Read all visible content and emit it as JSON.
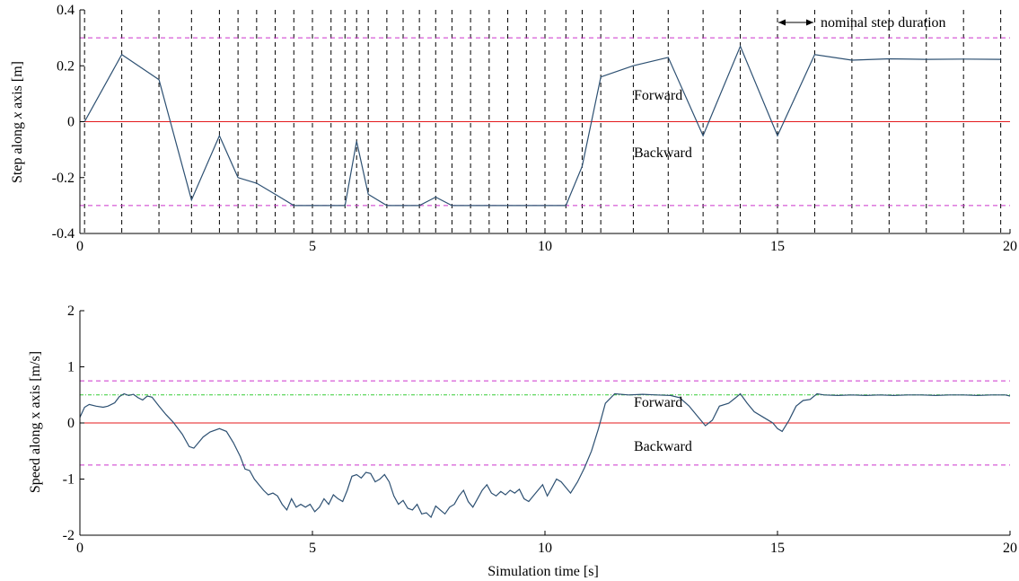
{
  "colors": {
    "series": "#2d5072",
    "zero_line": "#e41a1c",
    "limit_line": "#cc33cc",
    "target_line": "#33cc33",
    "step_marker": "#000000",
    "background": "#ffffff"
  },
  "chart_data": [
    {
      "type": "line",
      "ylabel_prefix": "Step along ",
      "ylabel_var": "x",
      "ylabel_suffix": " axis [m]",
      "xlabel": "",
      "xlim": [
        0,
        20
      ],
      "ylim": [
        -0.4,
        0.4
      ],
      "xticks": [
        0,
        5,
        10,
        15,
        20
      ],
      "yticks": [
        0.4,
        0.2,
        0,
        -0.2,
        -0.4
      ],
      "ytick_labels": [
        "0.4",
        "0.2",
        "0",
        "-0.2",
        "-0.4"
      ],
      "annotations": {
        "forward": "Forward",
        "backward": "Backward",
        "nominal": "nominal step duration"
      },
      "reference_lines": {
        "zero": 0,
        "upper_limit": 0.3,
        "lower_limit": -0.3
      },
      "step_times": [
        0.1,
        0.9,
        1.7,
        2.4,
        3.0,
        3.4,
        3.8,
        4.2,
        4.6,
        5.0,
        5.4,
        5.7,
        5.95,
        6.2,
        6.6,
        6.95,
        7.3,
        7.65,
        8.0,
        8.4,
        8.8,
        9.2,
        9.6,
        10.0,
        10.45,
        10.8,
        11.2,
        11.9,
        12.65,
        13.4,
        14.2,
        15.0,
        15.8,
        16.6,
        17.4,
        18.2,
        19.0,
        19.8
      ],
      "series": [
        {
          "x": [
            0.1,
            0.9,
            1.7,
            2.4,
            3.0,
            3.4,
            3.8,
            4.2,
            4.6,
            5.0,
            5.4,
            5.7,
            5.95,
            6.2,
            6.6,
            6.95,
            7.3,
            7.65,
            8.0,
            8.4,
            8.8,
            9.2,
            9.6,
            10.0,
            10.45,
            10.8,
            11.2,
            11.9,
            12.65,
            13.4,
            14.2,
            15.0,
            15.8,
            16.6,
            17.4,
            18.2,
            19.0,
            19.8
          ],
          "y": [
            0.0,
            0.24,
            0.15,
            -0.28,
            -0.05,
            -0.2,
            -0.22,
            -0.26,
            -0.3,
            -0.3,
            -0.3,
            -0.3,
            -0.07,
            -0.26,
            -0.3,
            -0.3,
            -0.3,
            -0.27,
            -0.3,
            -0.3,
            -0.3,
            -0.3,
            -0.3,
            -0.3,
            -0.3,
            -0.16,
            0.16,
            0.2,
            0.23,
            -0.05,
            0.27,
            -0.05,
            0.24,
            0.22,
            0.225,
            0.223,
            0.224,
            0.223
          ]
        }
      ]
    },
    {
      "type": "line",
      "ylabel": "Speed along x axis [m/s]",
      "xlabel": "Simulation time [s]",
      "xlim": [
        0,
        20
      ],
      "ylim": [
        -2,
        2
      ],
      "xticks": [
        0,
        5,
        10,
        15,
        20
      ],
      "yticks": [
        2,
        1,
        0,
        -1,
        -2
      ],
      "ytick_labels": [
        "2",
        "1",
        "0",
        "-1",
        "-2"
      ],
      "annotations": {
        "forward": "Forward",
        "backward": "Backward"
      },
      "reference_lines": {
        "zero": 0,
        "upper_limit": 0.75,
        "lower_limit": -0.75,
        "target": 0.5
      },
      "series": [
        {
          "x": [
            0.0,
            0.1,
            0.2,
            0.35,
            0.5,
            0.6,
            0.75,
            0.85,
            0.95,
            1.05,
            1.15,
            1.25,
            1.35,
            1.45,
            1.55,
            1.7,
            1.85,
            2.0,
            2.2,
            2.35,
            2.45,
            2.55,
            2.65,
            2.8,
            3.0,
            3.15,
            3.3,
            3.45,
            3.55,
            3.65,
            3.75,
            3.85,
            3.95,
            4.05,
            4.15,
            4.25,
            4.35,
            4.45,
            4.55,
            4.65,
            4.75,
            4.85,
            4.95,
            5.05,
            5.15,
            5.25,
            5.35,
            5.45,
            5.55,
            5.65,
            5.75,
            5.85,
            5.95,
            6.05,
            6.15,
            6.25,
            6.35,
            6.45,
            6.55,
            6.65,
            6.75,
            6.85,
            6.95,
            7.05,
            7.15,
            7.25,
            7.35,
            7.45,
            7.55,
            7.65,
            7.75,
            7.85,
            7.95,
            8.05,
            8.15,
            8.25,
            8.35,
            8.45,
            8.55,
            8.65,
            8.75,
            8.85,
            8.95,
            9.05,
            9.15,
            9.25,
            9.35,
            9.45,
            9.55,
            9.65,
            9.75,
            9.85,
            9.95,
            10.05,
            10.15,
            10.25,
            10.35,
            10.45,
            10.55,
            10.7,
            10.85,
            11.0,
            11.15,
            11.3,
            11.5,
            11.8,
            12.1,
            12.4,
            12.7,
            12.9,
            13.1,
            13.3,
            13.45,
            13.6,
            13.75,
            13.95,
            14.1,
            14.2,
            14.35,
            14.5,
            14.7,
            14.9,
            15.0,
            15.1,
            15.25,
            15.4,
            15.55,
            15.7,
            15.85,
            16.0,
            16.3,
            16.6,
            16.9,
            17.2,
            17.5,
            17.8,
            18.1,
            18.4,
            18.7,
            19.0,
            19.3,
            19.6,
            19.9,
            20.0
          ],
          "y": [
            0.1,
            0.28,
            0.33,
            0.3,
            0.28,
            0.3,
            0.36,
            0.47,
            0.52,
            0.49,
            0.51,
            0.45,
            0.41,
            0.48,
            0.46,
            0.3,
            0.15,
            0.02,
            -0.2,
            -0.42,
            -0.45,
            -0.35,
            -0.25,
            -0.16,
            -0.1,
            -0.15,
            -0.35,
            -0.6,
            -0.82,
            -0.85,
            -1.0,
            -1.1,
            -1.2,
            -1.28,
            -1.25,
            -1.3,
            -1.45,
            -1.55,
            -1.35,
            -1.5,
            -1.45,
            -1.5,
            -1.45,
            -1.58,
            -1.5,
            -1.35,
            -1.45,
            -1.28,
            -1.35,
            -1.4,
            -1.2,
            -0.95,
            -0.92,
            -0.98,
            -0.88,
            -0.9,
            -1.05,
            -1.0,
            -0.92,
            -1.05,
            -1.3,
            -1.45,
            -1.38,
            -1.52,
            -1.55,
            -1.45,
            -1.62,
            -1.6,
            -1.68,
            -1.48,
            -1.55,
            -1.62,
            -1.5,
            -1.45,
            -1.3,
            -1.2,
            -1.4,
            -1.5,
            -1.35,
            -1.2,
            -1.1,
            -1.25,
            -1.3,
            -1.22,
            -1.28,
            -1.2,
            -1.25,
            -1.18,
            -1.35,
            -1.4,
            -1.3,
            -1.2,
            -1.1,
            -1.3,
            -1.15,
            -1.0,
            -1.05,
            -1.15,
            -1.25,
            -1.05,
            -0.8,
            -0.5,
            -0.1,
            0.35,
            0.52,
            0.5,
            0.51,
            0.5,
            0.49,
            0.45,
            0.3,
            0.1,
            -0.05,
            0.05,
            0.3,
            0.35,
            0.45,
            0.52,
            0.35,
            0.2,
            0.1,
            0.0,
            -0.1,
            -0.15,
            0.05,
            0.3,
            0.4,
            0.42,
            0.52,
            0.5,
            0.49,
            0.5,
            0.49,
            0.5,
            0.49,
            0.5,
            0.5,
            0.49,
            0.5,
            0.5,
            0.49,
            0.5,
            0.5,
            0.48
          ]
        }
      ]
    }
  ]
}
